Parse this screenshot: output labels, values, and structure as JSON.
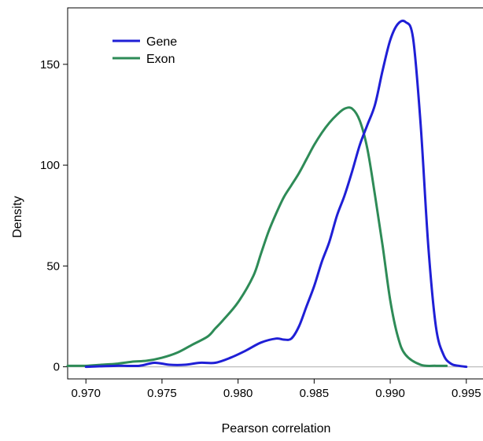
{
  "chart_data": {
    "type": "line",
    "title": "",
    "xlabel": "Pearson correlation",
    "ylabel": "Density",
    "xlim": [
      0.9688,
      0.9962
    ],
    "ylim": [
      -6,
      178
    ],
    "xticks": [
      0.97,
      0.975,
      0.98,
      0.985,
      0.99,
      0.995
    ],
    "xtick_labels": [
      "0.970",
      "0.975",
      "0.980",
      "0.985",
      "0.990",
      "0.995"
    ],
    "yticks": [
      0,
      50,
      100,
      150
    ],
    "ytick_labels": [
      "0",
      "50",
      "100",
      "150"
    ],
    "grid": false,
    "legend_position": "top-left",
    "reference_line_y": 0,
    "series": [
      {
        "name": "Gene",
        "color": "#1f1fd6",
        "x": [
          0.97,
          0.972,
          0.9735,
          0.9745,
          0.9755,
          0.9765,
          0.9775,
          0.9785,
          0.9795,
          0.9805,
          0.9815,
          0.9825,
          0.983,
          0.9835,
          0.984,
          0.9845,
          0.985,
          0.9855,
          0.986,
          0.9865,
          0.987,
          0.9875,
          0.988,
          0.9885,
          0.989,
          0.9895,
          0.99,
          0.9905,
          0.991,
          0.9915,
          0.992,
          0.9925,
          0.993,
          0.9935,
          0.994,
          0.9945,
          0.995
        ],
        "y": [
          0,
          0.5,
          0.5,
          2,
          1,
          1,
          2,
          2,
          4.5,
          8,
          12,
          14,
          13.5,
          14,
          20,
          30,
          40,
          52,
          62,
          75,
          85,
          97,
          110,
          120,
          130,
          147,
          162,
          170,
          171,
          163,
          120,
          60,
          20,
          6,
          1.5,
          0.5,
          0
        ]
      },
      {
        "name": "Exon",
        "color": "#2e8b57",
        "x": [
          0.9688,
          0.97,
          0.971,
          0.972,
          0.973,
          0.974,
          0.975,
          0.976,
          0.977,
          0.978,
          0.9785,
          0.979,
          0.98,
          0.981,
          0.9815,
          0.982,
          0.9825,
          0.983,
          0.9835,
          0.984,
          0.9845,
          0.985,
          0.9855,
          0.986,
          0.9865,
          0.987,
          0.9875,
          0.988,
          0.9885,
          0.989,
          0.9895,
          0.99,
          0.9905,
          0.991,
          0.992,
          0.993,
          0.9937
        ],
        "y": [
          0.5,
          0.5,
          1,
          1.5,
          2.5,
          3,
          4.5,
          7,
          11,
          15,
          19,
          23,
          32,
          45,
          56,
          67,
          76,
          84,
          90,
          96,
          103,
          110,
          116,
          121,
          125,
          128,
          128,
          122,
          108,
          85,
          60,
          33,
          15,
          6,
          1,
          0.5,
          0.5
        ]
      }
    ]
  }
}
